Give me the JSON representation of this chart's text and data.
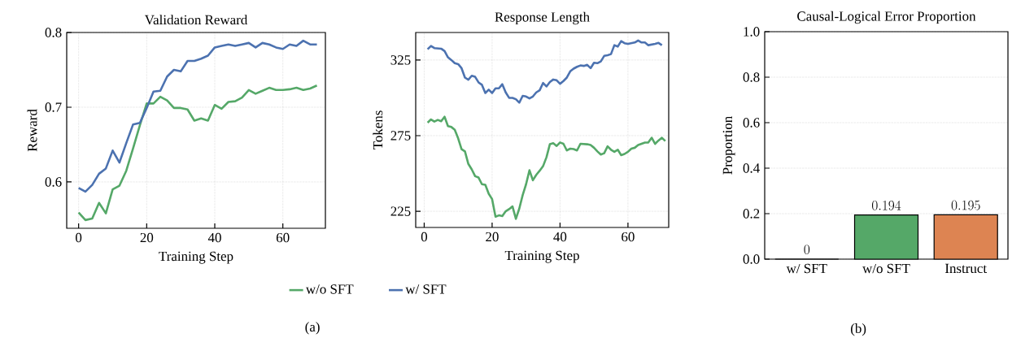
{
  "chart_data": [
    {
      "type": "line",
      "title": "Validation Reward",
      "xlabel": "Training Step",
      "ylabel": "Reward",
      "x": [
        0,
        2,
        4,
        6,
        8,
        10,
        12,
        14,
        16,
        18,
        20,
        22,
        24,
        26,
        28,
        30,
        32,
        34,
        36,
        38,
        40,
        42,
        44,
        46,
        48,
        50,
        52,
        54,
        56,
        58,
        60,
        62,
        64,
        66,
        68,
        70
      ],
      "series": [
        {
          "name": "w/o SFT",
          "color": "#55a868",
          "values": [
            0.559,
            0.549,
            0.551,
            0.572,
            0.558,
            0.59,
            0.595,
            0.615,
            0.645,
            0.676,
            0.705,
            0.705,
            0.714,
            0.709,
            0.699,
            0.699,
            0.697,
            0.682,
            0.685,
            0.682,
            0.703,
            0.698,
            0.707,
            0.708,
            0.713,
            0.723,
            0.718,
            0.722,
            0.726,
            0.723,
            0.723,
            0.724,
            0.726,
            0.723,
            0.725,
            0.729
          ]
        },
        {
          "name": "w/ SFT",
          "color": "#4c72b0",
          "values": [
            0.592,
            0.587,
            0.596,
            0.611,
            0.618,
            0.642,
            0.626,
            0.652,
            0.677,
            0.679,
            0.699,
            0.721,
            0.722,
            0.741,
            0.75,
            0.748,
            0.762,
            0.762,
            0.765,
            0.769,
            0.78,
            0.782,
            0.784,
            0.782,
            0.784,
            0.786,
            0.78,
            0.786,
            0.784,
            0.78,
            0.778,
            0.784,
            0.782,
            0.789,
            0.784,
            0.784
          ]
        }
      ],
      "xlim": [
        -3.5,
        72.5
      ],
      "ylim": [
        0.538,
        0.8
      ],
      "xticks": [
        0,
        20,
        40,
        60
      ],
      "yticks": [
        0.6,
        0.7,
        0.8
      ],
      "grid": true,
      "legend": "bottom",
      "annotations": [
        "(a)"
      ]
    },
    {
      "type": "line",
      "title": "Response Length",
      "xlabel": "Training Step",
      "ylabel": "Tokens",
      "series": [
        {
          "color": "#55a868",
          "x": [
            1,
            2,
            3,
            4,
            5,
            6,
            7,
            8,
            9,
            10,
            11,
            12,
            13,
            14,
            15,
            16,
            17,
            18,
            19,
            20,
            21,
            22,
            23,
            24,
            25,
            26,
            27,
            28,
            29,
            30,
            31,
            32,
            33,
            34,
            35,
            36,
            37,
            38,
            39,
            40,
            41,
            42,
            43,
            44,
            45,
            46,
            48,
            49,
            50,
            51,
            52,
            53,
            54,
            55,
            56,
            57,
            58,
            59,
            60,
            61,
            62,
            63,
            64,
            65,
            66,
            67,
            68,
            69,
            70,
            71
          ],
          "values": [
            283.6,
            285.7,
            284.3,
            285.4,
            284.5,
            287.5,
            281.3,
            280.7,
            278.9,
            273.2,
            266.1,
            264.6,
            256.3,
            252.7,
            248.2,
            247.3,
            242.9,
            242.5,
            236.6,
            233.0,
            221.4,
            222.3,
            221.8,
            225.0,
            226.4,
            228.2,
            220.0,
            226.8,
            235.7,
            242.9,
            252.1,
            245.5,
            249.1,
            251.8,
            254.8,
            260.7,
            269.3,
            270.0,
            268.2,
            270.5,
            269.6,
            265.2,
            266.4,
            266.1,
            265.2,
            269.6,
            269.3,
            268.8,
            267.0,
            264.6,
            262.5,
            263.4,
            267.9,
            265.7,
            264.3,
            265.7,
            262.1,
            262.9,
            264.3,
            266.4,
            267.0,
            268.8,
            269.6,
            270.4,
            270.5,
            273.6,
            269.6,
            271.8,
            273.6,
            271.4
          ]
        },
        {
          "color": "#4c72b0",
          "x": [
            1,
            2,
            3,
            5,
            6,
            7,
            8,
            9,
            10,
            11,
            12,
            13,
            14,
            15,
            16,
            17,
            18,
            19,
            20,
            21,
            22,
            23,
            24,
            25,
            26,
            27,
            28,
            29,
            30,
            31,
            32,
            33,
            34,
            35,
            36,
            37,
            38,
            39,
            40,
            41,
            42,
            43,
            44,
            45,
            46,
            47,
            48,
            49,
            50,
            51,
            52,
            53,
            54,
            55,
            56,
            57,
            58,
            59,
            60,
            62,
            63,
            64,
            65,
            66,
            68,
            69,
            70
          ],
          "values": [
            332.1,
            334.3,
            332.9,
            332.5,
            330.9,
            326.8,
            325.0,
            322.9,
            322.3,
            319.6,
            313.4,
            312.0,
            314.6,
            313.9,
            310.2,
            308.6,
            303.2,
            305.4,
            303.2,
            306.3,
            306.3,
            309.0,
            303.6,
            300.0,
            300.0,
            299.1,
            296.8,
            301.3,
            300.9,
            299.6,
            300.9,
            303.6,
            305.0,
            309.8,
            307.5,
            310.4,
            312.1,
            311.6,
            309.3,
            311.1,
            313.4,
            317.5,
            319.3,
            320.5,
            321.4,
            321.1,
            321.8,
            319.6,
            323.2,
            322.9,
            324.1,
            327.7,
            328.2,
            328.9,
            334.8,
            333.9,
            337.5,
            336.1,
            335.7,
            336.6,
            337.9,
            336.6,
            336.6,
            334.8,
            335.7,
            336.3,
            334.8
          ]
        }
      ],
      "xlim": [
        -2.5,
        72
      ],
      "ylim": [
        214.3,
        343.2
      ],
      "xticks": [
        0,
        20,
        40,
        60
      ],
      "yticks": [
        225,
        275,
        325
      ],
      "grid": true
    },
    {
      "type": "bar",
      "title": "Causal-Logical Error Proportion",
      "ylabel": "Proportion",
      "categories": [
        "w/ SFT",
        "w/o SFT",
        "Instruct"
      ],
      "values": [
        0,
        0.194,
        0.195
      ],
      "colors": [
        "#4c72b0",
        "#55a868",
        "#dd8452"
      ],
      "ylim": [
        0,
        1
      ],
      "yticks": [
        {
          "value": 0,
          "label": "0.0"
        },
        {
          "value": 0.2,
          "label": "0.2"
        },
        {
          "value": 0.4,
          "label": "0.4"
        },
        {
          "value": 0.6,
          "label": "0.6"
        },
        {
          "value": 0.8,
          "label": "0.8"
        },
        {
          "value": 1,
          "label": "1.0"
        }
      ],
      "grid": "y",
      "data_labels": true,
      "annotations": [
        "(b)"
      ]
    }
  ]
}
